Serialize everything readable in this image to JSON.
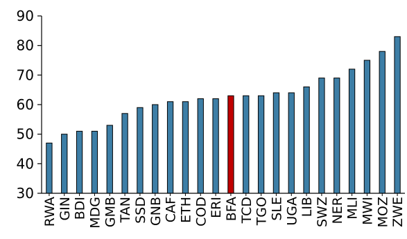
{
  "chart_data": {
    "type": "bar",
    "title": "",
    "xlabel": "",
    "ylabel": "",
    "ylim": [
      30,
      90
    ],
    "yticks": [
      30,
      40,
      50,
      60,
      70,
      80,
      90
    ],
    "grid": false,
    "legend": "none",
    "categories": [
      "RWA",
      "GIN",
      "BDI",
      "MDG",
      "GMB",
      "TAN",
      "SSD",
      "GNB",
      "CAF",
      "ETH",
      "COD",
      "ERI",
      "BFA",
      "TCD",
      "TGO",
      "SLE",
      "UGA",
      "LIB",
      "SWZ",
      "NER",
      "MLI",
      "MWI",
      "MOZ",
      "ZWE"
    ],
    "values": [
      47,
      50,
      51,
      51,
      53,
      57,
      59,
      60,
      61,
      61,
      62,
      62,
      63,
      63,
      63,
      64,
      64,
      66,
      69,
      69,
      72,
      75,
      78,
      83
    ],
    "highlight_category": "BFA",
    "colors": {
      "bar": "#3d7ea6",
      "highlight": "#c00000",
      "bar_edge": "#000000",
      "axis": "#000000"
    }
  }
}
